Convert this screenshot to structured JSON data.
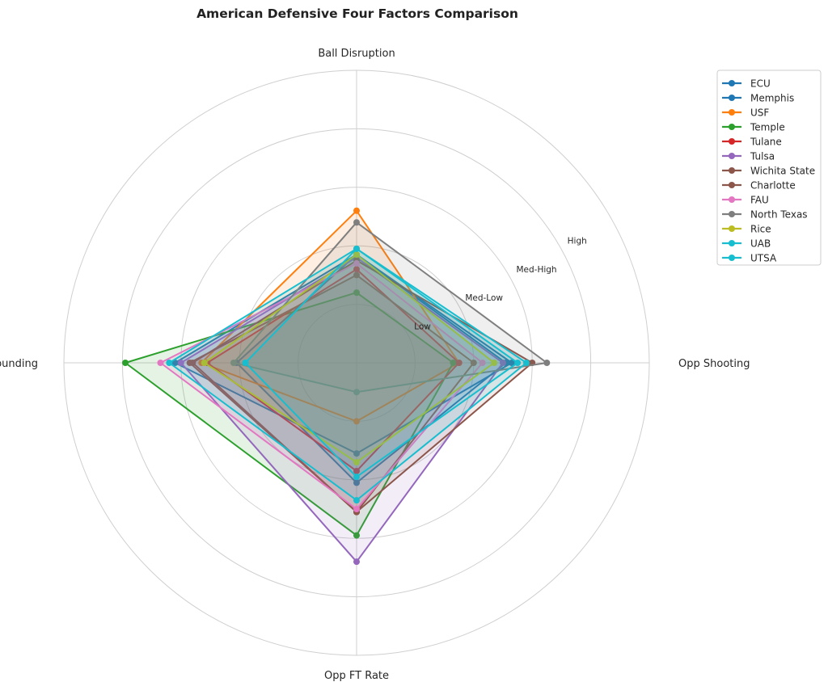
{
  "chart_data": {
    "type": "radar",
    "title": "American Defensive Four Factors Comparison",
    "axes": [
      "Ball Disruption",
      "Opp Shooting",
      "Opp FT Rate",
      "Def Rebounding"
    ],
    "rlim": [
      0,
      5
    ],
    "ring_labels": [
      {
        "value": 1,
        "label": "Low"
      },
      {
        "value": 2,
        "label": "Med-Low"
      },
      {
        "value": 3,
        "label": "Med-High"
      },
      {
        "value": 4,
        "label": "High"
      }
    ],
    "grid": true,
    "legend_position": "top-right",
    "series": [
      {
        "name": "ECU",
        "color": "#1f77b4",
        "values": [
          1.85,
          2.55,
          2.05,
          2.05
        ]
      },
      {
        "name": "Memphis",
        "color": "#1f77b4",
        "values": [
          1.85,
          2.65,
          1.55,
          3.1
        ]
      },
      {
        "name": "USF",
        "color": "#ff7f0e",
        "values": [
          2.6,
          1.75,
          1.0,
          2.65
        ]
      },
      {
        "name": "Temple",
        "color": "#2ca02c",
        "values": [
          1.2,
          1.65,
          2.95,
          3.95
        ]
      },
      {
        "name": "Tulane",
        "color": "#d62728",
        "values": [
          1.6,
          1.75,
          1.85,
          2.55
        ]
      },
      {
        "name": "Tulsa",
        "color": "#9467bd",
        "values": [
          1.8,
          2.5,
          3.4,
          3.0
        ]
      },
      {
        "name": "Wichita State",
        "color": "#8c564b",
        "values": [
          1.75,
          3.0,
          2.55,
          2.8
        ]
      },
      {
        "name": "Charlotte",
        "color": "#8c564b",
        "values": [
          1.5,
          2.0,
          2.55,
          2.85
        ]
      },
      {
        "name": "FAU",
        "color": "#e377c2",
        "values": [
          1.7,
          2.15,
          2.5,
          3.35
        ]
      },
      {
        "name": "North Texas",
        "color": "#7f7f7f",
        "values": [
          2.4,
          3.25,
          0.5,
          2.1
        ]
      },
      {
        "name": "Rice",
        "color": "#bcbd22",
        "values": [
          1.85,
          2.35,
          1.7,
          2.6
        ]
      },
      {
        "name": "UAB",
        "color": "#17becf",
        "values": [
          1.95,
          2.9,
          2.35,
          3.2
        ]
      },
      {
        "name": "UTSA",
        "color": "#17becf",
        "values": [
          1.95,
          2.75,
          1.95,
          1.9
        ]
      }
    ]
  }
}
